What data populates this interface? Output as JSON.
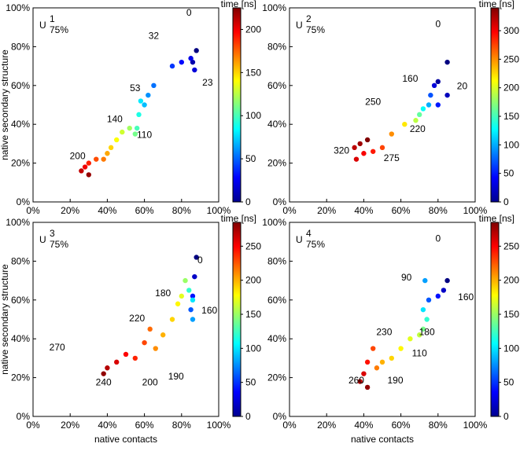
{
  "chart_data": [
    {
      "type": "scatter",
      "title": "U",
      "title_sup": "1",
      "title_sub": "75%",
      "ylabel": "native secondary structure",
      "colorbar_label": "time [ns]",
      "xlim": [
        0,
        100
      ],
      "ylim": [
        0,
        100
      ],
      "clim": [
        0,
        225
      ],
      "cticks": [
        0,
        50,
        100,
        150,
        200
      ],
      "xticks": [
        {
          "value": 0,
          "label": "0%"
        },
        {
          "value": 20,
          "label": "20%"
        },
        {
          "value": 40,
          "label": "40%"
        },
        {
          "value": 60,
          "label": "60%"
        },
        {
          "value": 80,
          "label": "80%"
        },
        {
          "value": 100,
          "label": "100%"
        }
      ],
      "yticks": [
        {
          "value": 0,
          "label": "0%"
        },
        {
          "value": 20,
          "label": "20%"
        },
        {
          "value": 40,
          "label": "40%"
        },
        {
          "value": 60,
          "label": "60%"
        },
        {
          "value": 80,
          "label": "80%"
        },
        {
          "value": 100,
          "label": "100%"
        }
      ],
      "x": [
        88,
        86,
        87,
        85,
        80,
        75,
        65,
        62,
        60,
        58,
        57,
        56,
        55,
        52,
        48,
        45,
        42,
        40,
        38,
        34,
        30,
        28,
        26,
        30
      ],
      "y": [
        78,
        72,
        68,
        74,
        72,
        70,
        60,
        55,
        50,
        52,
        45,
        38,
        35,
        38,
        36,
        32,
        28,
        25,
        22,
        22,
        20,
        18,
        16,
        14
      ],
      "time": [
        0,
        10,
        20,
        23,
        30,
        40,
        53,
        60,
        70,
        80,
        90,
        100,
        110,
        120,
        130,
        140,
        150,
        160,
        170,
        180,
        190,
        200,
        210,
        220
      ],
      "annotations": [
        "0",
        "32",
        "53",
        "23",
        "140",
        "110",
        "200"
      ]
    },
    {
      "type": "scatter",
      "title": "U",
      "title_sup": "2",
      "title_sub": "75%",
      "colorbar_label": "time [ns]",
      "xlim": [
        0,
        100
      ],
      "ylim": [
        0,
        100
      ],
      "clim": [
        0,
        340
      ],
      "cticks": [
        0,
        50,
        100,
        150,
        200,
        250,
        300
      ],
      "xticks": [
        {
          "value": 0,
          "label": "0%"
        },
        {
          "value": 20,
          "label": "20%"
        },
        {
          "value": 40,
          "label": "40%"
        },
        {
          "value": 60,
          "label": "60%"
        },
        {
          "value": 80,
          "label": "80%"
        },
        {
          "value": 100,
          "label": "100%"
        }
      ],
      "yticks": [
        {
          "value": 0,
          "label": "0%"
        },
        {
          "value": 20,
          "label": "20%"
        },
        {
          "value": 40,
          "label": "40%"
        },
        {
          "value": 60,
          "label": "60%"
        },
        {
          "value": 80,
          "label": "80%"
        },
        {
          "value": 100,
          "label": "100%"
        }
      ],
      "x": [
        85,
        80,
        85,
        78,
        80,
        76,
        75,
        72,
        70,
        68,
        62,
        55,
        50,
        45,
        40,
        36,
        35,
        38,
        42
      ],
      "y": [
        72,
        62,
        55,
        60,
        50,
        55,
        50,
        48,
        45,
        42,
        40,
        35,
        28,
        26,
        25,
        22,
        28,
        30,
        32
      ],
      "time": [
        0,
        10,
        20,
        30,
        50,
        70,
        100,
        130,
        160,
        190,
        220,
        250,
        275,
        290,
        300,
        310,
        320,
        330,
        340
      ],
      "annotations": [
        "0",
        "20",
        "160",
        "250",
        "220",
        "320",
        "275"
      ]
    },
    {
      "type": "scatter",
      "title": "U",
      "title_sup": "3",
      "title_sub": "75%",
      "ylabel": "native secondary structure",
      "xlabel": "native contacts",
      "colorbar_label": "time [ns]",
      "xlim": [
        0,
        100
      ],
      "ylim": [
        0,
        100
      ],
      "clim": [
        0,
        285
      ],
      "cticks": [
        0,
        50,
        100,
        150,
        200,
        250
      ],
      "xticks": [
        {
          "value": 0,
          "label": "0%"
        },
        {
          "value": 20,
          "label": "20%"
        },
        {
          "value": 40,
          "label": "40%"
        },
        {
          "value": 60,
          "label": "60%"
        },
        {
          "value": 80,
          "label": "80%"
        },
        {
          "value": 100,
          "label": "100%"
        }
      ],
      "yticks": [
        {
          "value": 0,
          "label": "0%"
        },
        {
          "value": 20,
          "label": "20%"
        },
        {
          "value": 40,
          "label": "40%"
        },
        {
          "value": 60,
          "label": "60%"
        },
        {
          "value": 80,
          "label": "80%"
        },
        {
          "value": 100,
          "label": "100%"
        }
      ],
      "x": [
        88,
        87,
        86,
        85,
        86,
        86,
        84,
        82,
        80,
        78,
        75,
        70,
        66,
        63,
        60,
        55,
        50,
        45,
        40,
        38
      ],
      "y": [
        82,
        72,
        62,
        55,
        50,
        60,
        65,
        70,
        62,
        58,
        50,
        42,
        35,
        45,
        38,
        30,
        32,
        28,
        25,
        22
      ],
      "time": [
        0,
        20,
        40,
        60,
        80,
        100,
        120,
        150,
        170,
        180,
        190,
        200,
        210,
        220,
        230,
        240,
        250,
        260,
        270,
        280
      ],
      "annotations": [
        "0",
        "180",
        "160",
        "220",
        "270",
        "190",
        "240",
        "200"
      ]
    },
    {
      "type": "scatter",
      "title": "U",
      "title_sup": "4",
      "title_sub": "75%",
      "xlabel": "native contacts",
      "colorbar_label": "time [ns]",
      "xlim": [
        0,
        100
      ],
      "ylim": [
        0,
        100
      ],
      "clim": [
        0,
        285
      ],
      "cticks": [
        0,
        50,
        100,
        150,
        200,
        250
      ],
      "xticks": [
        {
          "value": 0,
          "label": "0%"
        },
        {
          "value": 20,
          "label": "20%"
        },
        {
          "value": 40,
          "label": "40%"
        },
        {
          "value": 60,
          "label": "60%"
        },
        {
          "value": 80,
          "label": "80%"
        },
        {
          "value": 100,
          "label": "100%"
        }
      ],
      "yticks": [
        {
          "value": 0,
          "label": "0%"
        },
        {
          "value": 20,
          "label": "20%"
        },
        {
          "value": 40,
          "label": "40%"
        },
        {
          "value": 60,
          "label": "60%"
        },
        {
          "value": 80,
          "label": "80%"
        },
        {
          "value": 100,
          "label": "100%"
        }
      ],
      "x": [
        85,
        83,
        80,
        75,
        73,
        72,
        74,
        72,
        70,
        65,
        60,
        55,
        50,
        47,
        45,
        42,
        40,
        38,
        42
      ],
      "y": [
        70,
        65,
        62,
        60,
        70,
        55,
        50,
        45,
        42,
        40,
        35,
        30,
        28,
        25,
        35,
        28,
        22,
        18,
        15
      ],
      "time": [
        0,
        20,
        40,
        60,
        80,
        100,
        120,
        140,
        160,
        170,
        180,
        190,
        200,
        215,
        230,
        245,
        260,
        270,
        280
      ],
      "annotations": [
        "0",
        "90",
        "160",
        "180",
        "110",
        "230",
        "190",
        "260"
      ]
    }
  ]
}
